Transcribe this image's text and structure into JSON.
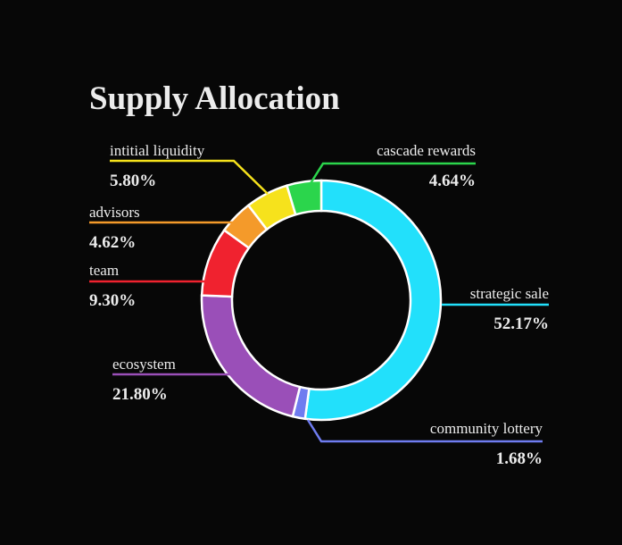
{
  "chart_data": {
    "type": "donut",
    "title": "Supply Allocation",
    "categories": [
      "strategic sale",
      "community lottery",
      "ecosystem",
      "team",
      "advisors",
      "intitial liquidity",
      "cascade rewards"
    ],
    "values": [
      52.17,
      1.68,
      21.8,
      9.3,
      4.62,
      5.8,
      4.64
    ],
    "value_labels": [
      "52.17%",
      "1.68%",
      "21.80%",
      "9.30%",
      "4.62%",
      "5.80%",
      "4.64%"
    ],
    "colors": [
      "#22e0fb",
      "#6f7cf0",
      "#9a4fb8",
      "#f0222f",
      "#f49a2a",
      "#f6e21c",
      "#2bd54c"
    ]
  }
}
